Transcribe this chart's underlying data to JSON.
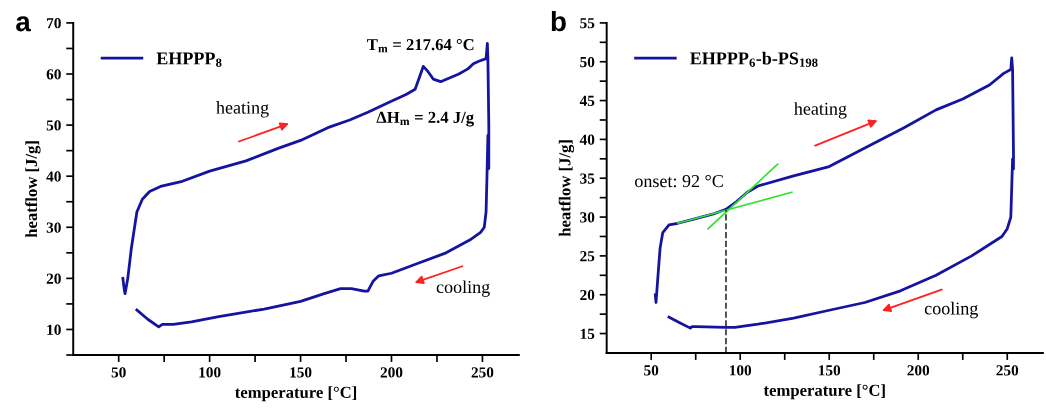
{
  "chart_data": [
    {
      "type": "line",
      "title": "a",
      "xlabel": "temperature [°C]",
      "ylabel": "heatflow [J/g]",
      "xlim": [
        25,
        270
      ],
      "ylim": [
        5,
        70
      ],
      "xticks": [
        50,
        {
          "value": 75,
          "label": null
        },
        100,
        {
          "value": 125,
          "label": null
        },
        150,
        {
          "value": 175,
          "label": null
        },
        200,
        {
          "value": 225,
          "label": null
        },
        250
      ],
      "yticks": [
        {
          "value": 5,
          "label": null
        },
        10,
        {
          "value": 15,
          "label": null
        },
        20,
        {
          "value": 25,
          "label": null
        },
        30,
        {
          "value": 35,
          "label": null
        },
        40,
        {
          "value": 45,
          "label": null
        },
        50,
        {
          "value": 55,
          "label": null
        },
        60,
        {
          "value": 65,
          "label": null
        },
        70
      ],
      "legend": "top left",
      "grid": false,
      "annotations": [
        "T$_{m}$ = 217.64 °C",
        "ΔH$_{m}$ = 2.4 J/g",
        "heating",
        "cooling"
      ],
      "series": [
        {
          "name": "EHPPP$_{8}$",
          "color": "#1414a0",
          "line_style": "solid",
          "x": [
            52.3,
            53,
            53.5,
            55,
            57,
            60,
            63,
            67,
            73,
            85,
            100,
            120,
            138,
            150,
            165,
            177,
            187,
            199,
            208,
            213,
            215.5,
            217.5,
            220,
            223,
            227,
            237,
            242,
            245,
            248,
            252,
            252.7,
            253,
            253.5,
            253.5,
            253,
            252.5,
            252,
            251,
            249,
            243,
            230,
            215,
            200,
            193,
            190,
            187,
            185,
            178,
            172,
            163,
            150,
            130,
            105,
            90,
            80,
            74,
            72,
            66,
            60
          ],
          "values": [
            20,
            18,
            17,
            20,
            26,
            33,
            35.5,
            37,
            38,
            39,
            41,
            43,
            45.5,
            47,
            49.5,
            51,
            52.5,
            54.5,
            56,
            57,
            59.5,
            61.5,
            60.5,
            59,
            58.5,
            60,
            61,
            62,
            62.5,
            63,
            66,
            63,
            50,
            41.5,
            48,
            40,
            33,
            30,
            29,
            27.5,
            25,
            23,
            21,
            20.5,
            19.5,
            17.5,
            17.5,
            18,
            18,
            17,
            15.5,
            14,
            12.5,
            11.5,
            11,
            11,
            10.5,
            12,
            13.8
          ]
        }
      ]
    },
    {
      "type": "line",
      "title": "b",
      "xlabel": "temperature [°C]",
      "ylabel": "heatflow [J/g]",
      "xlim": [
        25,
        270
      ],
      "ylim": [
        12.5,
        55
      ],
      "xticks": [
        50,
        {
          "value": 75,
          "label": null
        },
        100,
        {
          "value": 125,
          "label": null
        },
        150,
        {
          "value": 175,
          "label": null
        },
        200,
        {
          "value": 225,
          "label": null
        },
        250
      ],
      "yticks": [
        15,
        {
          "value": 17.5,
          "label": null
        },
        20,
        {
          "value": 22.5,
          "label": null
        },
        25,
        {
          "value": 27.5,
          "label": null
        },
        30,
        {
          "value": 32.5,
          "label": null
        },
        35,
        {
          "value": 37.5,
          "label": null
        },
        40,
        {
          "value": 42.5,
          "label": null
        },
        45,
        {
          "value": 47.5,
          "label": null
        },
        50,
        {
          "value": 52.5,
          "label": null
        },
        55
      ],
      "legend": "top left",
      "grid": false,
      "annotations": [
        "onset: 92 °C",
        "heating",
        "cooling"
      ],
      "series": [
        {
          "name": "EHPPP$_{6}$-b-PS$_{198}$",
          "color": "#1414a0",
          "line_style": "solid",
          "x": [
            52.3,
            52.7,
            54,
            55,
            56.5,
            60,
            65,
            75,
            85,
            92,
            98,
            104,
            110,
            130,
            150,
            170,
            192,
            210,
            225,
            240,
            248,
            252,
            252.5,
            253,
            253.5,
            253.5,
            253,
            252,
            250,
            247,
            230,
            210,
            190,
            170,
            150,
            130,
            110,
            97,
            92,
            75,
            73,
            72,
            66,
            60
          ],
          "values": [
            20,
            19,
            23,
            26,
            28,
            29,
            29.2,
            29.8,
            30.4,
            31,
            32,
            33.2,
            34,
            35.3,
            36.5,
            38.9,
            41.5,
            43.8,
            45.2,
            47,
            48.5,
            49,
            50.5,
            49,
            38,
            36.2,
            37.5,
            30,
            28.5,
            27.5,
            25,
            22.5,
            20.5,
            19,
            18,
            17,
            16.2,
            15.8,
            15.8,
            15.9,
            15.9,
            15.7,
            16.4,
            17.1
          ]
        },
        {
          "color": "#33e033",
          "line_style": "solid",
          "x": [
            82,
            121
          ],
          "values": [
            28.5,
            36.8
          ]
        },
        {
          "color": "#33e033",
          "line_style": "solid",
          "x": [
            65,
            129
          ],
          "values": [
            29.2,
            33.2
          ]
        },
        {
          "color": "#333333",
          "line_style": "dashed",
          "x": [
            92,
            92
          ],
          "values": [
            12.5,
            31
          ]
        }
      ]
    }
  ]
}
